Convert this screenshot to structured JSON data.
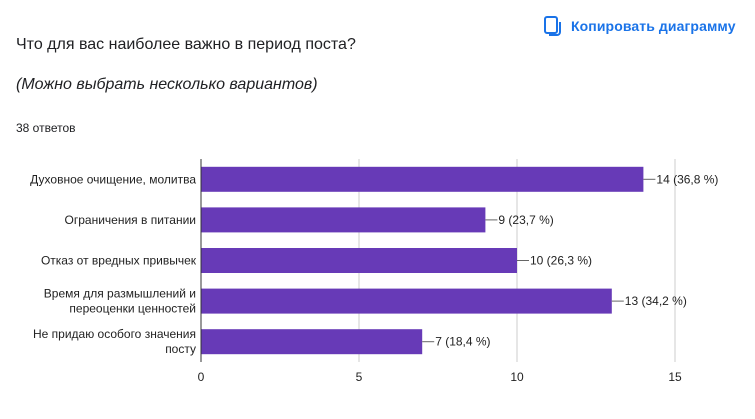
{
  "header": {
    "copy_label": "Копировать диаграмму",
    "copy_icon": "copy-icon"
  },
  "question": {
    "title": "Что для вас наиболее важно в период поста?",
    "subtitle": "(Можно выбрать несколько вариантов)",
    "responses": "38 ответов"
  },
  "colors": {
    "bar": "#673ab7",
    "accent": "#1a73e8",
    "axis": "#333333",
    "grid": "#cccccc"
  },
  "chart_data": {
    "type": "bar",
    "orientation": "horizontal",
    "categories": [
      [
        "Духовное очищение, молитва"
      ],
      [
        "Ограничения в питании"
      ],
      [
        "Отказ от вредных привычек"
      ],
      [
        "Время для размышлений и",
        "переоценки ценностей"
      ],
      [
        "Не придаю особого значения",
        "посту"
      ]
    ],
    "values": [
      14,
      9,
      10,
      13,
      7
    ],
    "data_labels": [
      "14 (36,8 %)",
      "9 (23,7 %)",
      "10 (26,3 %)",
      "13 (34,2 %)",
      "7 (18,4 %)"
    ],
    "xlim": [
      0,
      15
    ],
    "ticks": [
      0,
      5,
      10,
      15
    ],
    "grid": true,
    "legend": "none"
  }
}
